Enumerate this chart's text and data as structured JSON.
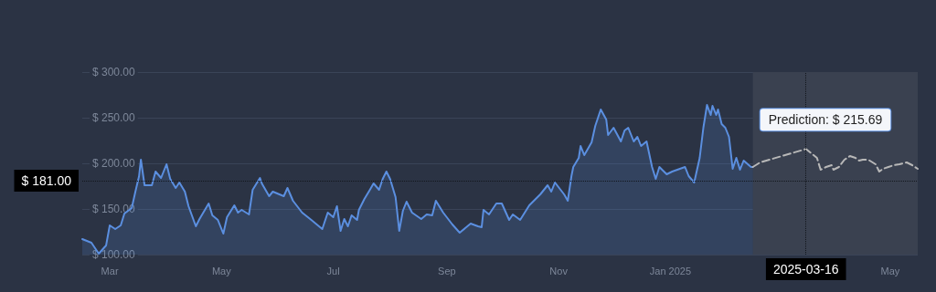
{
  "chart_data": {
    "type": "area",
    "xlim": [
      "2024-02-15",
      "2025-05-16"
    ],
    "ylim": [
      100,
      300
    ],
    "xticks": [
      {
        "value": "2024-03-01",
        "label": "Mar"
      },
      {
        "value": "2024-05-01",
        "label": "May"
      },
      {
        "value": "2024-07-01",
        "label": "Jul"
      },
      {
        "value": "2024-09-01",
        "label": "Sep"
      },
      {
        "value": "2024-11-01",
        "label": "Nov"
      },
      {
        "value": "2025-01-01",
        "label": "Jan 2025"
      },
      {
        "value": "2025-05-01",
        "label": "May"
      }
    ],
    "yticks": [
      {
        "value": 100,
        "label": "$ 100.00"
      },
      {
        "value": 150,
        "label": "$ 150.00"
      },
      {
        "value": 200,
        "label": "$ 200.00"
      },
      {
        "value": 250,
        "label": "$ 250.00"
      },
      {
        "value": 300,
        "label": "$ 300.00"
      }
    ],
    "grid": "y",
    "marker": "none",
    "series": [
      {
        "color": "#5b8fe0",
        "x": [
          "2024-02-15",
          "2024-02-20",
          "2024-02-24",
          "2024-02-28",
          "2024-03-01",
          "2024-03-04",
          "2024-03-07",
          "2024-03-09",
          "2024-03-13",
          "2024-03-15",
          "2024-03-17",
          "2024-03-18",
          "2024-03-20",
          "2024-03-24",
          "2024-03-26",
          "2024-03-29",
          "2024-04-01",
          "2024-04-03",
          "2024-04-06",
          "2024-04-08",
          "2024-04-11",
          "2024-04-13",
          "2024-04-17",
          "2024-04-19",
          "2024-04-24",
          "2024-04-26",
          "2024-04-29",
          "2024-05-02",
          "2024-05-04",
          "2024-05-08",
          "2024-05-10",
          "2024-05-12",
          "2024-05-16",
          "2024-05-18",
          "2024-05-22",
          "2024-05-23",
          "2024-05-27",
          "2024-05-29",
          "2024-06-04",
          "2024-06-06",
          "2024-06-09",
          "2024-06-14",
          "2024-06-19",
          "2024-06-25",
          "2024-06-28",
          "2024-07-01",
          "2024-07-03",
          "2024-07-05",
          "2024-07-07",
          "2024-07-09",
          "2024-07-11",
          "2024-07-14",
          "2024-07-15",
          "2024-07-18",
          "2024-07-21",
          "2024-07-23",
          "2024-07-26",
          "2024-07-28",
          "2024-07-30",
          "2024-08-01",
          "2024-08-04",
          "2024-08-06",
          "2024-08-08",
          "2024-08-10",
          "2024-08-13",
          "2024-08-18",
          "2024-08-21",
          "2024-08-24",
          "2024-08-26",
          "2024-08-30",
          "2024-09-04",
          "2024-09-08",
          "2024-09-14",
          "2024-09-18",
          "2024-09-20",
          "2024-09-21",
          "2024-09-24",
          "2024-09-28",
          "2024-10-01",
          "2024-10-05",
          "2024-10-07",
          "2024-10-11",
          "2024-10-16",
          "2024-10-22",
          "2024-10-26",
          "2024-10-28",
          "2024-10-30",
          "2024-11-04",
          "2024-11-06",
          "2024-11-08",
          "2024-11-09",
          "2024-11-12",
          "2024-11-13",
          "2024-11-15",
          "2024-11-19",
          "2024-11-21",
          "2024-11-24",
          "2024-11-27",
          "2024-11-28",
          "2024-12-01",
          "2024-12-05",
          "2024-12-07",
          "2024-12-09",
          "2024-12-12",
          "2024-12-14",
          "2024-12-16",
          "2024-12-19",
          "2024-12-22",
          "2024-12-24",
          "2024-12-26",
          "2024-12-30",
          "2025-01-02",
          "2025-01-09",
          "2025-01-11",
          "2025-01-14",
          "2025-01-17",
          "2025-01-19",
          "2025-01-21",
          "2025-01-23",
          "2025-01-24",
          "2025-01-26",
          "2025-01-27",
          "2025-01-29",
          "2025-01-31",
          "2025-02-02",
          "2025-02-04",
          "2025-02-06",
          "2025-02-08",
          "2025-02-10",
          "2025-02-14",
          "2025-02-15"
        ],
        "values": [
          117,
          113,
          101,
          110,
          132,
          128,
          132,
          145,
          151,
          169,
          186,
          204,
          176,
          176,
          191,
          184,
          199,
          183,
          173,
          179,
          169,
          153,
          131,
          139,
          156,
          143,
          138,
          123,
          141,
          154,
          146,
          149,
          144,
          171,
          184,
          178,
          164,
          169,
          164,
          173,
          159,
          146,
          138,
          128,
          146,
          141,
          153,
          126,
          139,
          131,
          143,
          138,
          149,
          161,
          171,
          178,
          171,
          183,
          191,
          183,
          163,
          126,
          148,
          158,
          146,
          139,
          144,
          143,
          159,
          146,
          133,
          124,
          134,
          131,
          130,
          149,
          144,
          156,
          156,
          138,
          144,
          138,
          154,
          166,
          176,
          169,
          179,
          166,
          159,
          186,
          196,
          206,
          219,
          209,
          223,
          241,
          259,
          248,
          231,
          239,
          224,
          236,
          239,
          224,
          229,
          219,
          224,
          196,
          183,
          196,
          188,
          191,
          196,
          186,
          179,
          206,
          239,
          264,
          253,
          263,
          253,
          259,
          243,
          239,
          229,
          194,
          206,
          193,
          203,
          196,
          196
        ]
      },
      {
        "type": "line",
        "line_style": "dashed",
        "color": "#b8b8b8",
        "x": [
          "2025-02-15",
          "2025-02-19",
          "2025-03-16",
          "2025-03-22",
          "2025-03-24",
          "2025-03-27",
          "2025-03-30",
          "2025-03-31",
          "2025-04-03",
          "2025-04-06",
          "2025-04-09",
          "2025-04-12",
          "2025-04-14",
          "2025-04-16",
          "2025-04-19",
          "2025-04-23",
          "2025-04-25",
          "2025-04-27",
          "2025-04-30",
          "2025-05-03",
          "2025-05-06",
          "2025-05-10",
          "2025-05-13",
          "2025-05-16"
        ],
        "values": [
          196,
          201,
          215.69,
          206,
          193,
          196,
          198,
          193,
          196,
          204,
          208,
          206,
          203,
          204,
          204,
          199,
          191,
          194,
          196,
          198,
          199,
          201,
          198,
          194
        ]
      }
    ],
    "ref_lines": [
      {
        "axis": "y",
        "value": 181,
        "label": "$ 181.00",
        "line_style": "dotted"
      },
      {
        "axis": "x",
        "value": "2025-03-16",
        "label": "2025-03-16",
        "line_style": "dotted"
      }
    ],
    "bands": [
      {
        "axis": "x",
        "from": "2025-02-15",
        "to": "2025-05-16",
        "label": null,
        "color": "#3a4150"
      }
    ],
    "annotations": [
      {
        "text": "Prediction: $ 215.69",
        "x": "2025-03-16",
        "y": 215.69
      }
    ]
  }
}
